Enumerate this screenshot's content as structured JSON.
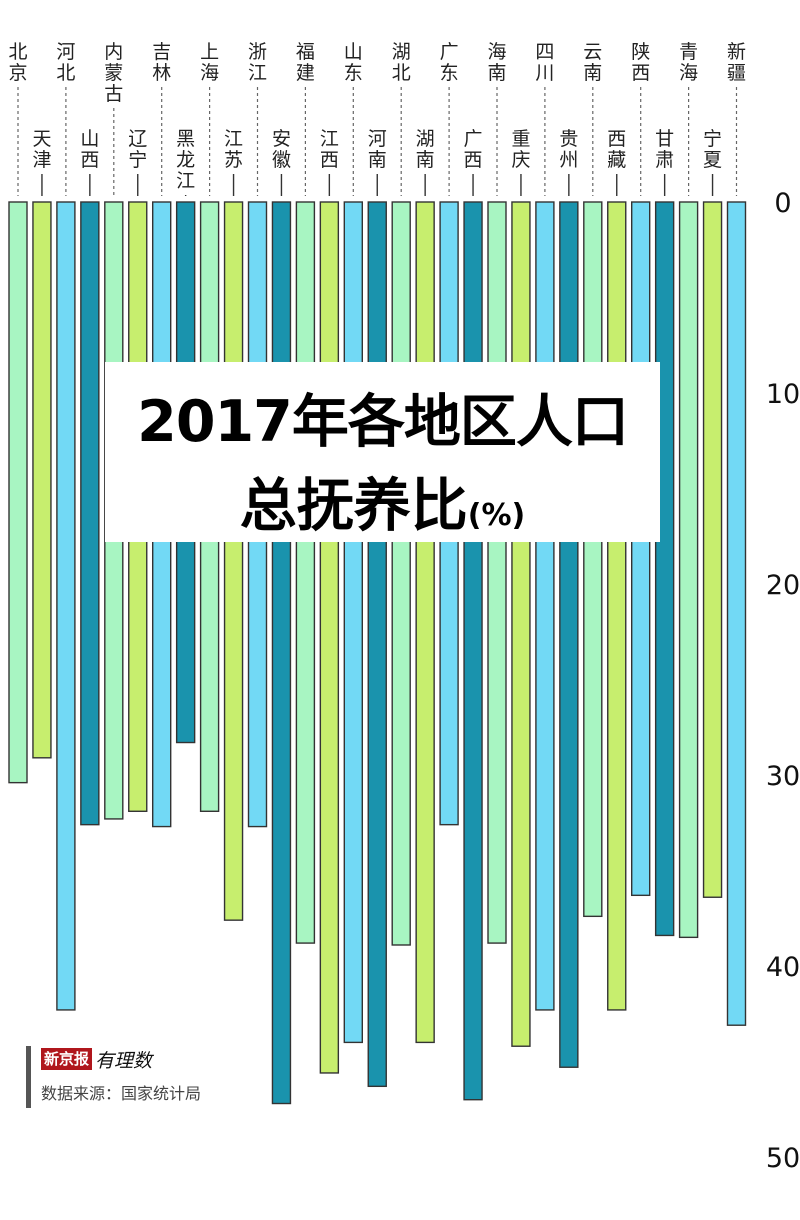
{
  "title": {
    "line1": "2017年各地区人口",
    "line2": "总抚养比",
    "unit": "(%)"
  },
  "footer": {
    "logo_badge": "新京报",
    "logo_script": "有理数",
    "source": "数据来源：国家统计局"
  },
  "colors": {
    "mint": "#a8f5c2",
    "lime": "#c7ee6e",
    "sky": "#72d9f5",
    "teal": "#1a93ad",
    "outline": "#333333"
  },
  "chart_data": {
    "type": "bar",
    "orientation": "vertical-downward",
    "axis_position": "right",
    "ylim": [
      0,
      50
    ],
    "yticks": [
      "0",
      "10",
      "20",
      "30",
      "40",
      "50"
    ],
    "grid": true,
    "categories": [
      {
        "name": "北京",
        "value": 30.4,
        "color": "mint"
      },
      {
        "name": "天津",
        "value": 29.1,
        "color": "lime"
      },
      {
        "name": "河北",
        "value": 42.3,
        "color": "sky"
      },
      {
        "name": "山西",
        "value": 32.6,
        "color": "teal"
      },
      {
        "name": "内蒙古",
        "value": 32.3,
        "color": "mint"
      },
      {
        "name": "辽宁",
        "value": 31.9,
        "color": "lime"
      },
      {
        "name": "吉林",
        "value": 32.7,
        "color": "sky"
      },
      {
        "name": "黑龙江",
        "value": 28.3,
        "color": "teal"
      },
      {
        "name": "上海",
        "value": 31.9,
        "color": "mint"
      },
      {
        "name": "江苏",
        "value": 37.6,
        "color": "lime"
      },
      {
        "name": "浙江",
        "value": 32.7,
        "color": "sky"
      },
      {
        "name": "安徽",
        "value": 47.2,
        "color": "teal"
      },
      {
        "name": "福建",
        "value": 38.8,
        "color": "mint"
      },
      {
        "name": "江西",
        "value": 45.6,
        "color": "lime"
      },
      {
        "name": "山东",
        "value": 44.0,
        "color": "sky"
      },
      {
        "name": "河南",
        "value": 46.3,
        "color": "teal"
      },
      {
        "name": "湖北",
        "value": 38.9,
        "color": "mint"
      },
      {
        "name": "湖南",
        "value": 44.0,
        "color": "lime"
      },
      {
        "name": "广东",
        "value": 32.6,
        "color": "sky"
      },
      {
        "name": "广西",
        "value": 47.0,
        "color": "teal"
      },
      {
        "name": "海南",
        "value": 38.8,
        "color": "mint"
      },
      {
        "name": "重庆",
        "value": 44.2,
        "color": "lime"
      },
      {
        "name": "四川",
        "value": 42.3,
        "color": "sky"
      },
      {
        "name": "贵州",
        "value": 45.3,
        "color": "teal"
      },
      {
        "name": "云南",
        "value": 37.4,
        "color": "mint"
      },
      {
        "name": "西藏",
        "value": 42.3,
        "color": "lime"
      },
      {
        "name": "陕西",
        "value": 36.3,
        "color": "sky"
      },
      {
        "name": "甘肃",
        "value": 38.4,
        "color": "teal"
      },
      {
        "name": "青海",
        "value": 38.5,
        "color": "mint"
      },
      {
        "name": "宁夏",
        "value": 36.4,
        "color": "lime"
      },
      {
        "name": "新疆",
        "value": 43.1,
        "color": "sky"
      }
    ]
  }
}
